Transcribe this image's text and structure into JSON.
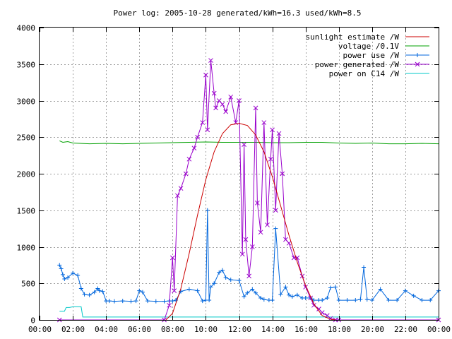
{
  "chart_data": {
    "type": "line",
    "title": "Power log: 2005-10-28 generated/kWh=16.3 used/kWh=8.5",
    "xlabel": "",
    "ylabel": "",
    "xlim_hours": [
      0,
      24
    ],
    "ylim": [
      0,
      4000
    ],
    "grid": true,
    "legend_position": "top-right",
    "x_ticks": [
      "00:00",
      "02:00",
      "04:00",
      "06:00",
      "08:00",
      "10:00",
      "12:00",
      "14:00",
      "16:00",
      "18:00",
      "20:00",
      "22:00",
      "00:00"
    ],
    "y_ticks": [
      "0",
      "500",
      "1000",
      "1500",
      "2000",
      "2500",
      "3000",
      "3500",
      "4000"
    ],
    "series": [
      {
        "name": "sunlight estimate /W",
        "color": "#cc0000",
        "style": "line",
        "x": [
          7.6,
          8.0,
          8.5,
          9.0,
          9.5,
          10.0,
          10.5,
          11.0,
          11.5,
          12.0,
          12.5,
          13.0,
          13.5,
          14.0,
          14.5,
          15.0,
          15.5,
          16.0,
          16.5,
          17.0,
          17.5,
          17.8
        ],
        "values": [
          0,
          90,
          430,
          910,
          1430,
          1920,
          2300,
          2550,
          2670,
          2690,
          2660,
          2530,
          2300,
          1960,
          1560,
          1160,
          790,
          470,
          220,
          60,
          10,
          0
        ]
      },
      {
        "name": "voltage /0.1V",
        "color": "#00a000",
        "style": "line",
        "x": [
          1.2,
          1.4,
          1.7,
          2.0,
          3.0,
          4.0,
          5.0,
          6.0,
          7.0,
          8.0,
          9.0,
          10.0,
          11.0,
          12.0,
          13.0,
          14.0,
          15.0,
          16.0,
          17.0,
          18.0,
          19.0,
          20.0,
          21.0,
          22.0,
          23.0,
          24.0
        ],
        "values": [
          2450,
          2430,
          2440,
          2420,
          2410,
          2415,
          2410,
          2415,
          2420,
          2425,
          2430,
          2435,
          2430,
          2430,
          2430,
          2425,
          2425,
          2430,
          2430,
          2420,
          2415,
          2420,
          2410,
          2410,
          2415,
          2410
        ]
      },
      {
        "name": "power use /W",
        "color": "#0066dd",
        "style": "line+plus",
        "x": [
          1.2,
          1.3,
          1.4,
          1.5,
          1.7,
          2.0,
          2.3,
          2.5,
          2.7,
          3.0,
          3.3,
          3.5,
          3.6,
          3.8,
          4.0,
          4.2,
          4.5,
          5.0,
          5.5,
          5.8,
          6.0,
          6.2,
          6.5,
          7.0,
          7.5,
          7.8,
          8.0,
          8.2,
          8.5,
          9.0,
          9.5,
          9.8,
          10.0,
          10.1,
          10.2,
          10.3,
          10.5,
          10.8,
          11.0,
          11.2,
          11.5,
          12.0,
          12.3,
          12.5,
          12.8,
          13.0,
          13.3,
          13.5,
          13.8,
          14.0,
          14.2,
          14.5,
          14.8,
          15.0,
          15.2,
          15.5,
          15.8,
          16.0,
          16.3,
          16.5,
          16.8,
          17.0,
          17.3,
          17.5,
          17.8,
          18.0,
          18.5,
          19.0,
          19.3,
          19.5,
          19.7,
          20.0,
          20.5,
          21.0,
          21.5,
          22.0,
          22.5,
          23.0,
          23.5,
          24.0
        ],
        "values": [
          750,
          700,
          620,
          560,
          580,
          640,
          610,
          430,
          350,
          340,
          380,
          430,
          400,
          390,
          260,
          260,
          255,
          260,
          255,
          260,
          400,
          380,
          260,
          255,
          255,
          260,
          260,
          270,
          390,
          420,
          400,
          260,
          270,
          1500,
          270,
          450,
          500,
          650,
          680,
          580,
          550,
          540,
          320,
          370,
          420,
          370,
          300,
          280,
          270,
          270,
          1250,
          350,
          450,
          340,
          320,
          340,
          300,
          300,
          300,
          270,
          270,
          270,
          300,
          440,
          450,
          270,
          270,
          270,
          280,
          720,
          280,
          270,
          420,
          270,
          270,
          400,
          330,
          270,
          270,
          400
        ]
      },
      {
        "name": "power generated /W",
        "color": "#9900cc",
        "style": "line+x",
        "x": [
          1.2,
          7.5,
          7.8,
          8.0,
          8.1,
          8.3,
          8.5,
          8.8,
          9.0,
          9.3,
          9.5,
          9.8,
          10.0,
          10.1,
          10.3,
          10.5,
          10.6,
          10.8,
          11.0,
          11.2,
          11.5,
          11.8,
          12.0,
          12.2,
          12.3,
          12.4,
          12.6,
          12.8,
          13.0,
          13.1,
          13.3,
          13.5,
          13.7,
          13.9,
          14.0,
          14.2,
          14.4,
          14.6,
          14.8,
          15.0,
          15.3,
          15.5,
          15.8,
          16.0,
          16.3,
          16.5,
          16.8,
          17.0,
          17.3,
          17.5,
          17.8,
          18.0,
          24.0
        ],
        "values": [
          0,
          0,
          200,
          850,
          400,
          1700,
          1800,
          2000,
          2200,
          2350,
          2500,
          2700,
          3350,
          2600,
          3550,
          3100,
          2900,
          3000,
          2950,
          2850,
          3050,
          2700,
          3000,
          900,
          2400,
          1100,
          600,
          1000,
          2900,
          1600,
          1200,
          2700,
          1300,
          2200,
          2600,
          1500,
          2550,
          2000,
          1100,
          1050,
          850,
          850,
          600,
          450,
          300,
          200,
          150,
          100,
          60,
          20,
          0,
          0,
          0
        ]
      },
      {
        "name": "power on C14 /W",
        "color": "#00c8c8",
        "style": "line",
        "x": [
          1.2,
          1.5,
          1.6,
          1.8,
          2.0,
          2.5,
          2.6,
          24.0
        ],
        "values": [
          120,
          120,
          170,
          170,
          180,
          180,
          40,
          40
        ]
      }
    ]
  }
}
